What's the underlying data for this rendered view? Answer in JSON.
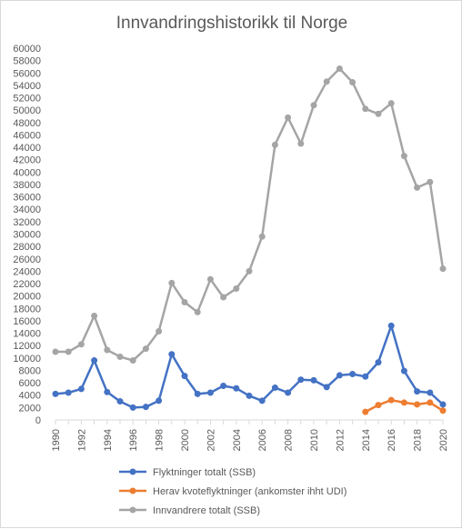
{
  "chart_data": {
    "type": "line",
    "title": "Innvandringshistorikk til Norge",
    "xlabel": "",
    "ylabel": "",
    "ylim": [
      0,
      60000
    ],
    "ytick_step": 2000,
    "xlim": [
      1990,
      2020
    ],
    "xtick_labels": [
      "1990",
      "1992",
      "1994",
      "1996",
      "1998",
      "2000",
      "2002",
      "2004",
      "2006",
      "2008",
      "2010",
      "2012",
      "2014",
      "2016",
      "2018",
      "2020"
    ],
    "grid": false,
    "legend_position": "bottom",
    "series": [
      {
        "name": "Flyktninger totalt (SSB)",
        "color": "#4472c4",
        "x": [
          1990,
          1991,
          1992,
          1993,
          1994,
          1995,
          1996,
          1997,
          1998,
          1999,
          2000,
          2001,
          2002,
          2003,
          2004,
          2005,
          2006,
          2007,
          2008,
          2009,
          2010,
          2011,
          2012,
          2013,
          2014,
          2015,
          2016,
          2017,
          2018,
          2019,
          2020
        ],
        "values": [
          4200,
          4400,
          5000,
          9600,
          4500,
          3000,
          2000,
          2100,
          3100,
          10600,
          7100,
          4200,
          4400,
          5500,
          5100,
          3900,
          3100,
          5200,
          4400,
          6500,
          6400,
          5300,
          7200,
          7400,
          7000,
          9300,
          15200,
          7900,
          4600,
          4400,
          2500
        ]
      },
      {
        "name": "Herav kvoteflyktninger (ankomster ihht UDI)",
        "color": "#ed7d31",
        "x": [
          2014,
          2015,
          2016,
          2017,
          2018,
          2019,
          2020
        ],
        "values": [
          1300,
          2400,
          3200,
          2800,
          2500,
          2800,
          1500
        ]
      },
      {
        "name": "Innvandrere totalt (SSB)",
        "color": "#a5a5a5",
        "x": [
          1990,
          1991,
          1992,
          1993,
          1994,
          1995,
          1996,
          1997,
          1998,
          1999,
          2000,
          2001,
          2002,
          2003,
          2004,
          2005,
          2006,
          2007,
          2008,
          2009,
          2010,
          2011,
          2012,
          2013,
          2014,
          2015,
          2016,
          2017,
          2018,
          2019,
          2020
        ],
        "values": [
          11000,
          11000,
          12200,
          16800,
          11300,
          10200,
          9600,
          11500,
          14300,
          22100,
          19000,
          17400,
          22700,
          19800,
          21200,
          24000,
          29600,
          44400,
          48800,
          44600,
          50800,
          54600,
          56700,
          54500,
          50200,
          49400,
          51100,
          42600,
          37500,
          38400,
          24400
        ]
      }
    ]
  }
}
